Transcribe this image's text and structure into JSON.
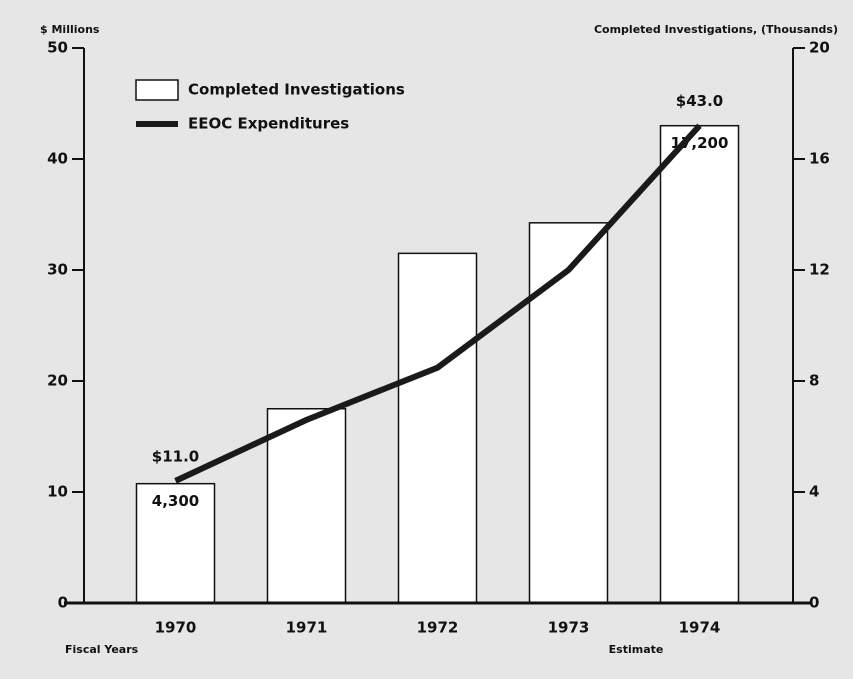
{
  "chart_data": {
    "type": "bar_line",
    "y_label": "$ Millions",
    "y2_label": "Completed Investigations, (Thousands)",
    "x_label": "Fiscal Years",
    "annotations": [
      "Estimate"
    ],
    "categories": [
      "1970",
      "1971",
      "1972",
      "1973",
      "1974"
    ],
    "ylim": [
      0,
      50
    ],
    "yticks": [
      0,
      10,
      20,
      30,
      40,
      50
    ],
    "y2lim": [
      0,
      20
    ],
    "y2ticks": [
      0,
      4,
      8,
      12,
      16,
      20
    ],
    "series": [
      {
        "name": "Completed Investigations",
        "type": "bar",
        "axis": "y2",
        "color": "#ffffff",
        "values": [
          4.3,
          7.0,
          12.6,
          13.7,
          17.2
        ],
        "value_labels": [
          "4,300",
          null,
          null,
          null,
          "17,200"
        ]
      },
      {
        "name": "EEOC Expenditures",
        "type": "line",
        "axis": "y",
        "color": "#1a1a1a",
        "values": [
          11.0,
          16.5,
          21.2,
          30.0,
          43.0
        ],
        "value_labels": [
          "$11.0",
          null,
          null,
          null,
          "$43.0"
        ]
      }
    ],
    "legend": "upper left"
  }
}
